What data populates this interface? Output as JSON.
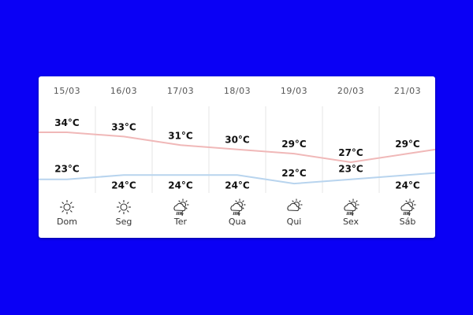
{
  "chart_data": {
    "type": "line",
    "categories": [
      "15/03",
      "16/03",
      "17/03",
      "18/03",
      "19/03",
      "20/03",
      "21/03"
    ],
    "weekdays": [
      "Dom",
      "Seg",
      "Ter",
      "Qua",
      "Qui",
      "Sex",
      "Sáb"
    ],
    "icons": [
      "sun-icon",
      "sun-icon",
      "thunderstorm-rain-icon",
      "thunderstorm-rain-icon",
      "partly-cloudy-icon",
      "thunderstorm-rain-icon",
      "thunderstorm-rain-icon"
    ],
    "unit": "°C",
    "series": [
      {
        "key": "max",
        "values": [
          34,
          33,
          31,
          30,
          29,
          27,
          29
        ],
        "labels": [
          "34°C",
          "33°C",
          "31°C",
          "30°C",
          "29°C",
          "27°C",
          "29°C"
        ],
        "color": "#f0b8b8"
      },
      {
        "key": "min",
        "values": [
          23,
          24,
          24,
          24,
          22,
          23,
          24
        ],
        "labels": [
          "23°C",
          "24°C",
          "24°C",
          "24°C",
          "22°C",
          "23°C",
          "24°C"
        ],
        "color": "#b8d4ee"
      }
    ],
    "grid": "vertical"
  }
}
